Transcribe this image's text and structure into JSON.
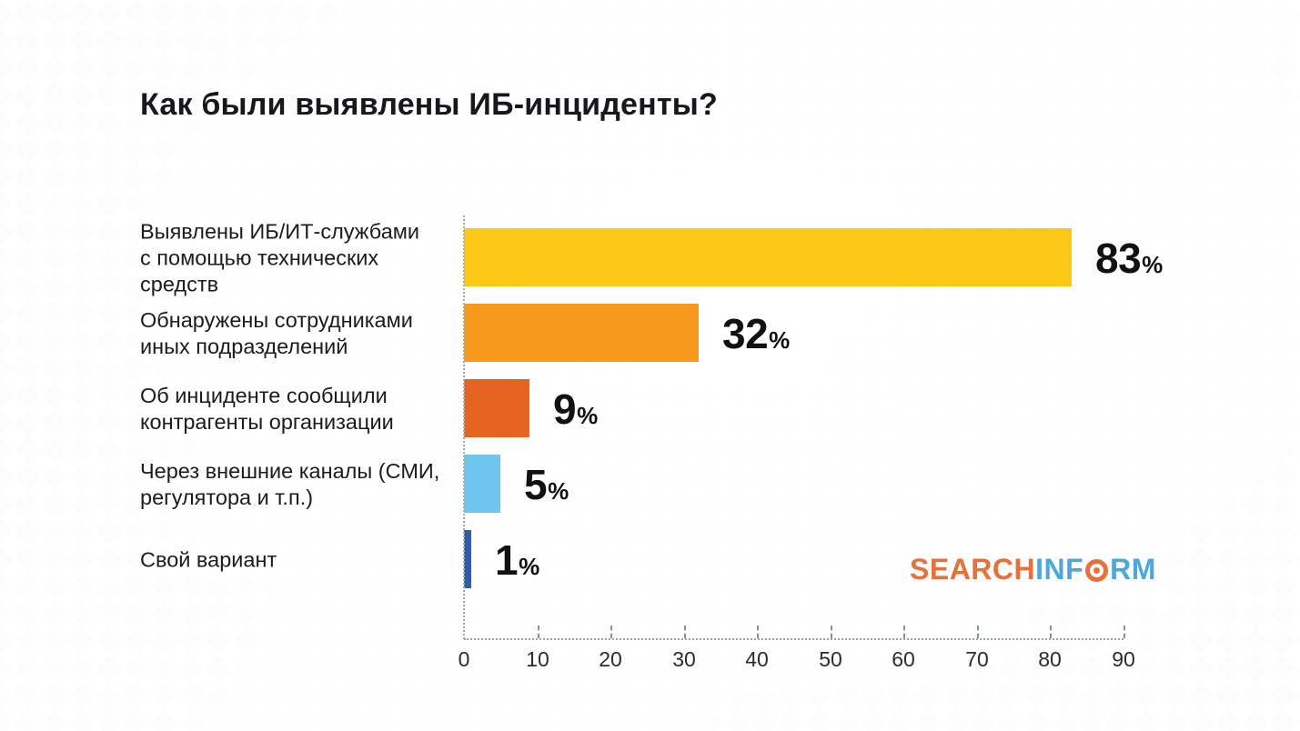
{
  "title": "Как были выявлены ИБ-инциденты?",
  "chart_data": {
    "type": "bar",
    "orientation": "horizontal",
    "title": "Как были выявлены ИБ-инциденты?",
    "categories": [
      "Выявлены ИБ/ИТ-службами с помощью технических средств",
      "Обнаружены сотрудниками иных подразделений",
      "Об инциденте сообщили контрагенты организации",
      "Через внешние каналы (СМИ, регулятора и т.п.)",
      "Свой вариант"
    ],
    "category_lines": [
      [
        "Выявлены ИБ/ИТ-службами",
        "с помощью технических средств"
      ],
      [
        "Обнаружены сотрудниками",
        "иных подразделений"
      ],
      [
        "Об инциденте сообщили",
        "контрагенты организации"
      ],
      [
        "Через внешние каналы (СМИ,",
        "регулятора и т.п.)"
      ],
      [
        "Свой вариант"
      ]
    ],
    "values": [
      83,
      32,
      9,
      5,
      1
    ],
    "unit": "%",
    "bar_colors": [
      "#FCC816",
      "#F7991D",
      "#E56422",
      "#6EC6EE",
      "#2E5EA9"
    ],
    "xlim": [
      0,
      90
    ],
    "x_ticks": [
      0,
      10,
      20,
      30,
      40,
      50,
      60,
      70,
      80,
      90
    ],
    "legend": "none",
    "grid": "dotted left axis line and dotted baseline with dashed tick marks",
    "value_label_position": "outside-end"
  },
  "logo": {
    "search": "SEARCH",
    "inform_prefix": "INF",
    "inform_suffix": "RM",
    "orange": "#e8713a",
    "blue": "#4ea7db"
  }
}
